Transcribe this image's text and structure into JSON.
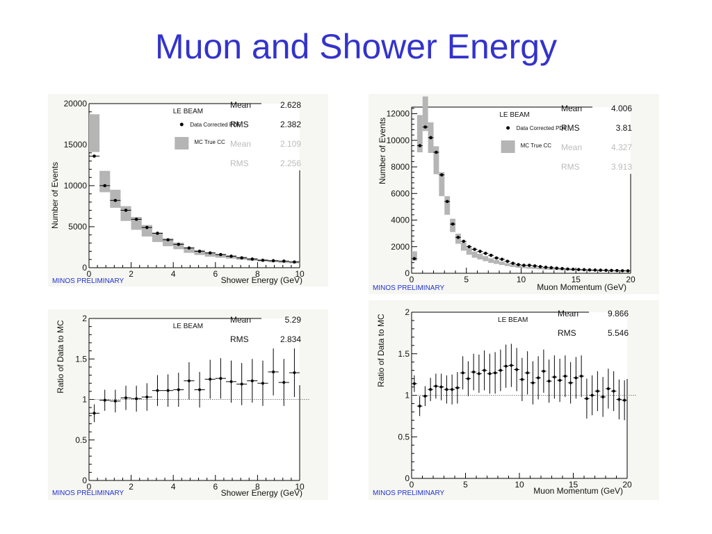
{
  "slide": {
    "title": "Muon and Shower Energy"
  },
  "chart_data": [
    {
      "id": "shower-energy-events",
      "type": "histogram",
      "panel_label": "LE BEAM",
      "preliminary": "MINOS PRELIMINARY",
      "xlabel": "Shower Energy (GeV)",
      "ylabel": "Number of Events",
      "xlim": [
        0,
        10
      ],
      "ylim": [
        0,
        20000
      ],
      "xticks": [
        0,
        2,
        4,
        6,
        8,
        10
      ],
      "yticks": [
        0,
        5000,
        10000,
        15000,
        20000
      ],
      "grid": false,
      "legend": [
        {
          "name": "Data Corrected PDF",
          "marker": "dot"
        },
        {
          "name": "MC   True CC",
          "marker": "box"
        }
      ],
      "stats": [
        {
          "label": "Mean",
          "value": "2.628",
          "color": "#111111"
        },
        {
          "label": "RMS",
          "value": "2.382",
          "color": "#111111"
        },
        {
          "label": "Mean",
          "value": "2.109",
          "color": "#bbbbbb"
        },
        {
          "label": "RMS",
          "value": "2.256",
          "color": "#bbbbbb"
        }
      ],
      "colors": {
        "mc": "#b5b5b5",
        "data": "#000000"
      },
      "bin_width": 0.5,
      "x": [
        0.25,
        0.75,
        1.25,
        1.75,
        2.25,
        2.75,
        3.25,
        3.75,
        4.25,
        4.75,
        5.25,
        5.75,
        6.25,
        6.75,
        7.25,
        7.75,
        8.25,
        8.75,
        9.25,
        9.75
      ],
      "data": [
        13600,
        10000,
        8200,
        7000,
        5900,
        4900,
        4200,
        3400,
        2850,
        2400,
        2000,
        1800,
        1600,
        1400,
        1200,
        1050,
        900,
        850,
        800,
        700
      ],
      "mc": [
        16400,
        10500,
        8400,
        6600,
        5400,
        4500,
        3700,
        3100,
        2650,
        2150,
        1850,
        1600,
        1450,
        1300,
        1150,
        1000,
        900,
        800,
        700,
        650
      ],
      "mc_err": [
        2300,
        1300,
        1100,
        900,
        780,
        700,
        570,
        480,
        400,
        340,
        300,
        260,
        230,
        200,
        180,
        160,
        150,
        140,
        130,
        120
      ]
    },
    {
      "id": "muon-momentum-events",
      "type": "histogram",
      "panel_label": "LE BEAM",
      "preliminary": "MINOS PRELIMINARY",
      "xlabel": "Muon Momentum (GeV)",
      "ylabel": "Number of Events",
      "xlim": [
        0,
        20
      ],
      "ylim": [
        0,
        12500
      ],
      "xticks": [
        0,
        5,
        10,
        15,
        20
      ],
      "yticks": [
        0,
        2000,
        4000,
        6000,
        8000,
        10000,
        12000
      ],
      "grid": false,
      "legend": [
        {
          "name": "Data Corrected PDF",
          "marker": "dot"
        },
        {
          "name": "MC   True CC",
          "marker": "box"
        }
      ],
      "stats": [
        {
          "label": "Mean",
          "value": "4.006",
          "color": "#111111"
        },
        {
          "label": "RMS",
          "value": "3.81",
          "color": "#111111"
        },
        {
          "label": "Mean",
          "value": "4.327",
          "color": "#bbbbbb"
        },
        {
          "label": "RMS",
          "value": "3.913",
          "color": "#bbbbbb"
        }
      ],
      "colors": {
        "mc": "#b5b5b5",
        "data": "#000000"
      },
      "bin_width": 0.5,
      "x": [
        0.25,
        0.75,
        1.25,
        1.75,
        2.25,
        2.75,
        3.25,
        3.75,
        4.25,
        4.75,
        5.25,
        5.75,
        6.25,
        6.75,
        7.25,
        7.75,
        8.25,
        8.75,
        9.25,
        9.75,
        10.25,
        10.75,
        11.25,
        11.75,
        12.25,
        12.75,
        13.25,
        13.75,
        14.25,
        14.75,
        15.25,
        15.75,
        16.25,
        16.75,
        17.25,
        17.75,
        18.25,
        18.75,
        19.25,
        19.75
      ],
      "data": [
        1100,
        9600,
        11000,
        10200,
        9100,
        7400,
        5400,
        3700,
        2700,
        2400,
        2000,
        1800,
        1650,
        1500,
        1350,
        1150,
        1050,
        900,
        750,
        650,
        600,
        600,
        550,
        500,
        450,
        420,
        380,
        350,
        320,
        300,
        280,
        270,
        250,
        240,
        230,
        220,
        210,
        200,
        190,
        180
      ],
      "mc": [
        1300,
        10500,
        12000,
        10200,
        8500,
        6700,
        5100,
        3600,
        2600,
        2000,
        1650,
        1400,
        1250,
        1100,
        950,
        850,
        750,
        650,
        570,
        500,
        460,
        420,
        390,
        360,
        330,
        310,
        290,
        270,
        255,
        240,
        230,
        220,
        210,
        200,
        190,
        185,
        178,
        170,
        165,
        160
      ],
      "mc_err": [
        350,
        1400,
        1300,
        1150,
        1050,
        900,
        700,
        500,
        380,
        300,
        260,
        230,
        210,
        190,
        170,
        150,
        130,
        110,
        100,
        90,
        80,
        75,
        70,
        65,
        60,
        55,
        50,
        48,
        45,
        42,
        40,
        38,
        36,
        34,
        32,
        30,
        29,
        28,
        27,
        26
      ]
    },
    {
      "id": "shower-energy-ratio",
      "type": "scatter",
      "panel_label": "LE BEAM",
      "preliminary": "MINOS PRELIMINARY",
      "xlabel": "Shower Energy (GeV)",
      "ylabel": "Ratio of Data to MC",
      "xlim": [
        0,
        10
      ],
      "ylim": [
        0,
        2
      ],
      "xticks": [
        0,
        2,
        4,
        6,
        8,
        10
      ],
      "yticks": [
        0,
        0.5,
        1,
        1.5,
        2
      ],
      "ytick_labels": [
        "0",
        "0.5",
        "1",
        "1.5",
        "2"
      ],
      "grid": false,
      "reference_line": 1,
      "stats": [
        {
          "label": "Mean",
          "value": "5.29",
          "color": "#111111"
        },
        {
          "label": "RMS",
          "value": "2.834",
          "color": "#111111"
        }
      ],
      "bin_width": 0.5,
      "x": [
        0.25,
        0.75,
        1.25,
        1.75,
        2.25,
        2.75,
        3.25,
        3.75,
        4.25,
        4.75,
        5.25,
        5.75,
        6.25,
        6.75,
        7.25,
        7.75,
        8.25,
        8.75,
        9.25,
        9.75
      ],
      "y": [
        0.83,
        0.99,
        0.98,
        1.02,
        1.01,
        1.03,
        1.11,
        1.11,
        1.12,
        1.23,
        1.12,
        1.25,
        1.26,
        1.22,
        1.19,
        1.23,
        1.2,
        1.34,
        1.21,
        1.33
      ],
      "yerr": [
        0.11,
        0.13,
        0.14,
        0.15,
        0.16,
        0.17,
        0.19,
        0.2,
        0.21,
        0.23,
        0.22,
        0.24,
        0.25,
        0.26,
        0.26,
        0.27,
        0.28,
        0.29,
        0.29,
        0.3
      ]
    },
    {
      "id": "muon-momentum-ratio",
      "type": "scatter",
      "panel_label": "LE BEAM",
      "preliminary": "MINOS PRELIMINARY",
      "xlabel": "Muon Momentum (GeV)",
      "ylabel": "Ratio of Data to MC",
      "xlim": [
        0,
        20
      ],
      "ylim": [
        0,
        2
      ],
      "xticks": [
        0,
        5,
        10,
        15,
        20
      ],
      "yticks": [
        0,
        0.5,
        1,
        1.5,
        2
      ],
      "ytick_labels": [
        "0",
        "0.5",
        "1",
        "1.5",
        "2"
      ],
      "grid": false,
      "reference_line": 1,
      "stats": [
        {
          "label": "Mean",
          "value": "9.866",
          "color": "#111111"
        },
        {
          "label": "RMS",
          "value": "5.546",
          "color": "#111111"
        }
      ],
      "bin_width": 0.5,
      "x": [
        0.25,
        0.75,
        1.25,
        1.75,
        2.25,
        2.75,
        3.25,
        3.75,
        4.25,
        4.75,
        5.25,
        5.75,
        6.25,
        6.75,
        7.25,
        7.75,
        8.25,
        8.75,
        9.25,
        9.75,
        10.25,
        10.75,
        11.25,
        11.75,
        12.25,
        12.75,
        13.25,
        13.75,
        14.25,
        14.75,
        15.25,
        15.75,
        16.25,
        16.75,
        17.25,
        17.75,
        18.25,
        18.75,
        19.25,
        19.75
      ],
      "y": [
        1.14,
        0.87,
        0.99,
        1.07,
        1.11,
        1.1,
        1.07,
        1.07,
        1.09,
        1.27,
        1.2,
        1.28,
        1.26,
        1.3,
        1.26,
        1.27,
        1.3,
        1.35,
        1.36,
        1.31,
        1.19,
        1.27,
        1.15,
        1.21,
        1.29,
        1.17,
        1.22,
        1.18,
        1.23,
        1.15,
        1.21,
        1.23,
        0.96,
        1.0,
        1.05,
        0.98,
        1.08,
        1.05,
        0.95,
        0.94
      ],
      "yerr": [
        0.1,
        0.12,
        0.12,
        0.14,
        0.15,
        0.16,
        0.17,
        0.18,
        0.19,
        0.2,
        0.21,
        0.22,
        0.23,
        0.24,
        0.24,
        0.25,
        0.25,
        0.26,
        0.26,
        0.26,
        0.26,
        0.26,
        0.26,
        0.26,
        0.26,
        0.26,
        0.26,
        0.26,
        0.25,
        0.25,
        0.25,
        0.25,
        0.24,
        0.24,
        0.24,
        0.24,
        0.24,
        0.24,
        0.24,
        0.24
      ]
    }
  ]
}
